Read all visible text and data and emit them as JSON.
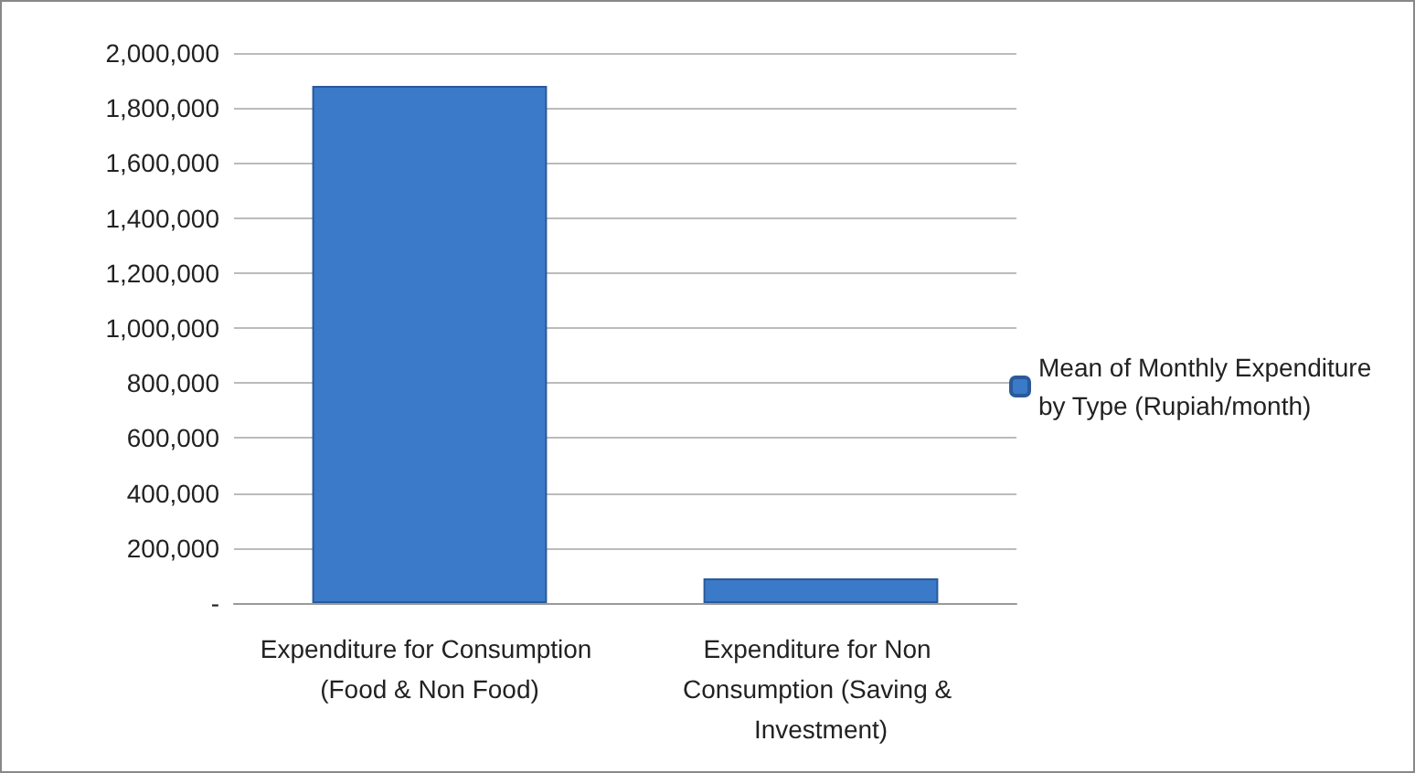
{
  "chart_data": {
    "type": "bar",
    "categories": [
      "Expenditure for Consumption (Food & Non Food)",
      "Expenditure for Non Consumption (Saving & Investment)"
    ],
    "series": [
      {
        "name": "Mean of Monthly Expenditure by Type (Rupiah/month)",
        "color": "#3b7ac8",
        "values": [
          1880000,
          90000
        ]
      }
    ],
    "ylim": [
      0,
      2000000
    ],
    "yticks": [
      {
        "value": 0,
        "label": "-"
      },
      {
        "value": 200000,
        "label": "200,000"
      },
      {
        "value": 400000,
        "label": "400,000"
      },
      {
        "value": 600000,
        "label": "600,000"
      },
      {
        "value": 800000,
        "label": "800,000"
      },
      {
        "value": 1000000,
        "label": "1,000,000"
      },
      {
        "value": 1200000,
        "label": "1,200,000"
      },
      {
        "value": 1400000,
        "label": "1,400,000"
      },
      {
        "value": 1600000,
        "label": "1,600,000"
      },
      {
        "value": 1800000,
        "label": "1,800,000"
      },
      {
        "value": 2000000,
        "label": "2,000,000"
      }
    ],
    "grid": "y",
    "legend": "right"
  }
}
